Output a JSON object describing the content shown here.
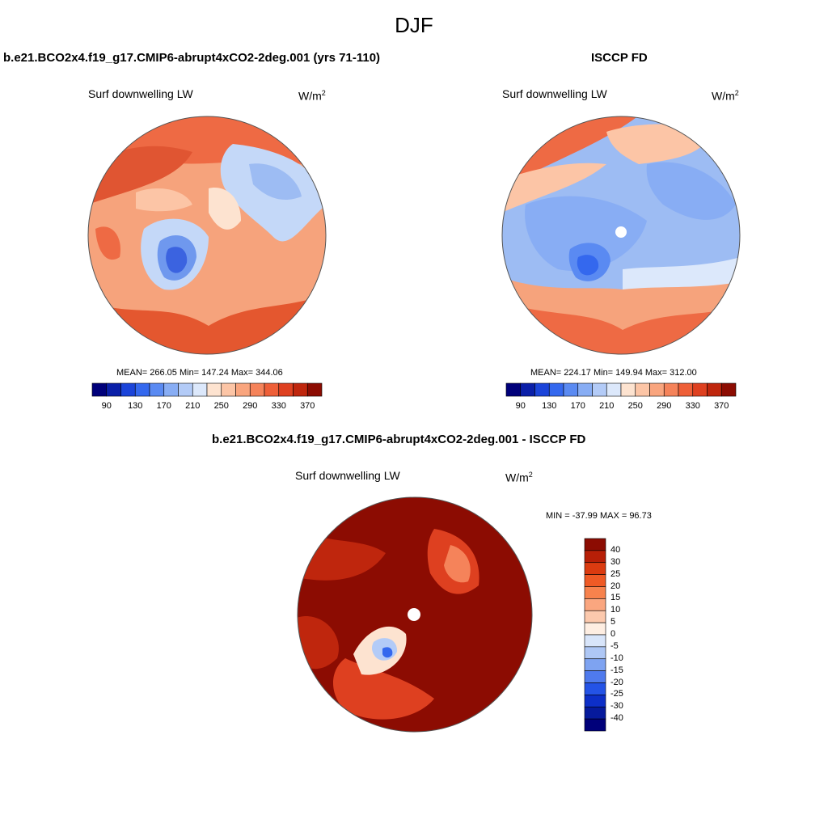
{
  "title": "DJF",
  "panel_left": {
    "case_title": "b.e21.BCO2x4.f19_g17.CMIP6-abrupt4xCO2-2deg.001 (yrs 71-110)",
    "variable": "Surf downwelling LW",
    "units_base": "W/m",
    "units_exp": "2",
    "stats": "MEAN= 266.05  Min= 147.24  Max= 344.06"
  },
  "panel_right": {
    "case_title": "ISCCP FD",
    "variable": "Surf downwelling LW",
    "units_base": "W/m",
    "units_exp": "2",
    "stats": "MEAN= 224.17  Min= 149.94  Max= 312.00"
  },
  "panel_diff": {
    "case_title": "b.e21.BCO2x4.f19_g17.CMIP6-abrupt4xCO2-2deg.001 - ISCCP FD",
    "variable": "Surf downwelling LW",
    "units_base": "W/m",
    "units_exp": "2",
    "stats": "MIN = -37.99 MAX =  96.73"
  },
  "colorbar_abs": {
    "tick_labels": [
      "90",
      "130",
      "170",
      "210",
      "250",
      "290",
      "330",
      "370"
    ],
    "colors": [
      "#00007a",
      "#0a1fa8",
      "#1b44d9",
      "#3468ee",
      "#5a8af2",
      "#88adf4",
      "#b3cbf7",
      "#dce8fb",
      "#fde3d0",
      "#fcc5a6",
      "#f9a57e",
      "#f5835a",
      "#ee5f38",
      "#de4020",
      "#bf260d",
      "#8c0c02"
    ]
  },
  "colorbar_diff": {
    "tick_labels": [
      "40",
      "30",
      "25",
      "20",
      "15",
      "10",
      "5",
      "0",
      "-5",
      "-10",
      "-15",
      "-20",
      "-25",
      "-30",
      "-40"
    ],
    "colors": [
      "#8c0c02",
      "#b71f07",
      "#db3b10",
      "#ef5a25",
      "#f7824d",
      "#faa67f",
      "#fcc9ad",
      "#feeee2",
      "#d8e5fa",
      "#aec7f5",
      "#7ea3f1",
      "#4f7aed",
      "#2453e6",
      "#0d2fc8",
      "#061a9c",
      "#00007a"
    ]
  }
}
